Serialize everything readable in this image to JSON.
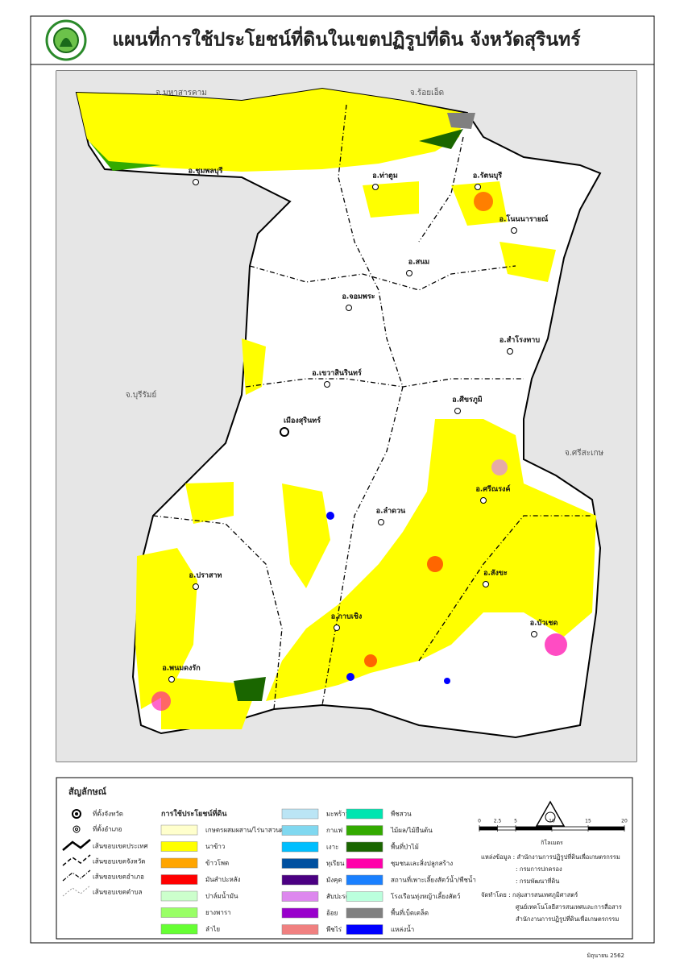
{
  "header": {
    "title": "แผนที่การใช้ประโยชน์ที่ดินในเขตปฏิรูปที่ดิน จังหวัดสุรินทร์"
  },
  "map": {
    "neighbors": [
      "จ.มหาสารคาม",
      "จ.ร้อยเอ็ด",
      "จ.บุรีรัมย์",
      "จ.ศรีสะเกษ"
    ],
    "districts": [
      "อ.ชุมพลบุรี",
      "อ.ท่าตูม",
      "อ.รัตนบุรี",
      "อ.โนนนารายณ์",
      "อ.สนม",
      "อ.จอมพระ",
      "อ.สำโรงทาบ",
      "อ.เขวาสินรินทร์",
      "อ.ศีขรภูมิ",
      "เมืองสุรินทร์",
      "อ.ศรีณรงค์",
      "อ.ลำดวน",
      "อ.ปราสาท",
      "อ.สังขะ",
      "อ.กาบเชิง",
      "อ.บัวเชด",
      "อ.พนมดงรัก"
    ]
  },
  "legend": {
    "title": "สัญลักษณ์",
    "symbols": [
      "ที่ตั้งจังหวัด",
      "ที่ตั้งอำเภอ",
      "เส้นขอบเขตประเทศ",
      "เส้นขอบเขตจังหวัด",
      "เส้นขอบเขตอำเภอ",
      "เส้นขอบเขตตำบล"
    ],
    "landuse_title": "การใช้ประโยชน์ที่ดิน",
    "landuse": [
      {
        "name": "เกษตรผสมผสาน/ไร่นาสวนผสม",
        "color": "#ffffcc"
      },
      {
        "name": "นาข้าว",
        "color": "#ffff00"
      },
      {
        "name": "ข้าวโพด",
        "color": "#ffa500"
      },
      {
        "name": "มันสำปะหลัง",
        "color": "#ff0000"
      },
      {
        "name": "ปาล์มน้ำมัน",
        "color": "#ccffcc"
      },
      {
        "name": "ยางพารา",
        "color": "#99ff66"
      },
      {
        "name": "ลำไย",
        "color": "#66ff33"
      },
      {
        "name": "มะพร้าว",
        "color": "#bbe5f5"
      },
      {
        "name": "กาแฟ",
        "color": "#80d8f0"
      },
      {
        "name": "เงาะ",
        "color": "#00bfff"
      },
      {
        "name": "ทุเรียน",
        "color": "#0050a0"
      },
      {
        "name": "มังคุด",
        "color": "#4b0082"
      },
      {
        "name": "สับปะรด",
        "color": "#dd88ee"
      },
      {
        "name": "อ้อย",
        "color": "#9900cc"
      },
      {
        "name": "พืชไร่",
        "color": "#f08080"
      },
      {
        "name": "พืชสวน",
        "color": "#00e5b0"
      },
      {
        "name": "ไม้ผล/ไม้ยืนต้น",
        "color": "#33aa00"
      },
      {
        "name": "พื้นที่ป่าไม้",
        "color": "#1a6600"
      },
      {
        "name": "ชุมชนและสิ่งปลูกสร้าง",
        "color": "#ff00aa"
      },
      {
        "name": "สถานที่เพาะเลี้ยงสัตว์น้ำ/พืชน้ำ",
        "color": "#1a80ff"
      },
      {
        "name": "โรงเรือนทุ่งหญ้าเลี้ยงสัตว์",
        "color": "#bbffdd"
      },
      {
        "name": "พื้นที่เบ็ดเตล็ด",
        "color": "#808080"
      },
      {
        "name": "แหล่งน้ำ",
        "color": "#0000ff"
      }
    ]
  },
  "scale": {
    "label": "กิโลเมตร",
    "ticks": [
      0,
      2.5,
      5,
      10,
      15,
      20
    ]
  },
  "source": [
    "แหล่งข้อมูล : สำนักงานการปฏิรูปที่ดินเพื่อเกษตรกรรม",
    ": กรมการปกครอง",
    ": กรมพัฒนาที่ดิน",
    "จัดทำโดย : กลุ่มสารสนเทศภูมิศาสตร์",
    "ศูนย์เทคโนโลยีสารสนเทศและการสื่อสาร",
    "สำนักงานการปฏิรูปที่ดินเพื่อเกษตรกรรม"
  ],
  "date": "มิถุนายน 2562"
}
